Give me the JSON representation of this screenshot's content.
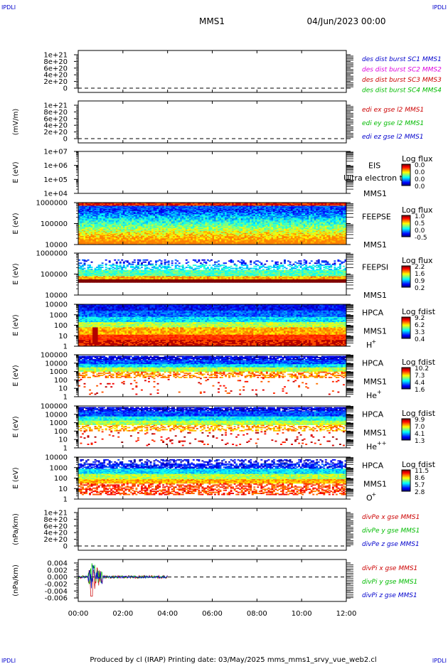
{
  "header": {
    "corner_left": "IPDLI",
    "corner_right": "IPDLI",
    "spacecraft": "MMS1",
    "datetime": "04/Jun/2023 00:00"
  },
  "footer": {
    "text": "Produced by cl (IRAP)   Printing date: 03/May/2025   mms_mms1_srvy_vue_web2.cl",
    "corner_left": "IPDLI",
    "corner_right": "IPDLI"
  },
  "colors": {
    "red": "#cc0000",
    "magenta": "#dd00dd",
    "green": "#00bb00",
    "blue": "#0000cc"
  },
  "chart_data": [
    {
      "id": "p1",
      "type": "line",
      "ylabel": "",
      "yticks": [
        "1e+21",
        "8e+20",
        "6e+20",
        "4e+20",
        "2e+20",
        "0"
      ],
      "channels": [
        {
          "text": "des dist burst SC1 MMS1",
          "color": "blue"
        },
        {
          "text": "des dist burst SC2 MMS2",
          "color": "magenta"
        },
        {
          "text": "des dist burst SC3 MMS3",
          "color": "red"
        },
        {
          "text": "des dist burst SC4 MMS4",
          "color": "green"
        }
      ],
      "zero_line": true
    },
    {
      "id": "p2",
      "type": "line",
      "ylabel": "(mV/m)",
      "yticks": [
        "1e+21",
        "8e+20",
        "6e+20",
        "4e+20",
        "2e+20",
        "0"
      ],
      "channels": [
        {
          "text": "edi ex gse l2 MMS1",
          "color": "red"
        },
        {
          "text": "edi ey gse l2 MMS1",
          "color": "green"
        },
        {
          "text": "edi ez gse l2 MMS1",
          "color": "blue"
        }
      ],
      "zero_line": true
    },
    {
      "id": "p3",
      "type": "heatmap",
      "ylabel": "E (eV)",
      "yticks": [
        "1e+07",
        "1e+06",
        "1e+05",
        "1e+04"
      ],
      "instrument": [
        "EIS",
        "MMS1"
      ],
      "overlay_text": "Ultra electron to",
      "colorbar": {
        "label": "Log flux",
        "ticks": [
          "0.0",
          "0.0",
          "0.0",
          "0.0"
        ]
      },
      "empty": true
    },
    {
      "id": "p4",
      "type": "heatmap",
      "ylabel": "E (eV)",
      "yticks": [
        "1000000",
        "100000",
        "10000"
      ],
      "instrument": [
        "FEEPSE",
        "MMS1"
      ],
      "colorbar": {
        "label": "Log flux",
        "ticks": [
          "1.0",
          "0.5",
          "0.0",
          "-0.5"
        ]
      },
      "style": "feepse"
    },
    {
      "id": "p5",
      "type": "heatmap",
      "ylabel": "E (eV)",
      "yticks": [
        "1000000",
        "100000",
        "10000"
      ],
      "instrument": [
        "FEEPSI",
        "MMS1"
      ],
      "colorbar": {
        "label": "Log flux",
        "ticks": [
          "2.2",
          "1.6",
          "0.9",
          "0.2"
        ]
      },
      "style": "feepsi"
    },
    {
      "id": "p6",
      "type": "heatmap",
      "ylabel": "E (eV)",
      "yticks": [
        "10000",
        "1000",
        "100",
        "10",
        "1"
      ],
      "instrument": [
        "HPCA",
        "MMS1"
      ],
      "species": "H",
      "charge": "+",
      "colorbar": {
        "label": "Log fdist",
        "ticks": [
          "9.2",
          "6.2",
          "3.3",
          "0.4"
        ]
      },
      "style": "hplus"
    },
    {
      "id": "p7",
      "type": "heatmap",
      "ylabel": "E (eV)",
      "yticks": [
        "100000",
        "10000",
        "1000",
        "100",
        "10",
        "1"
      ],
      "instrument": [
        "HPCA",
        "MMS1"
      ],
      "species": "He",
      "charge": "+",
      "colorbar": {
        "label": "Log fdist",
        "ticks": [
          "10.2",
          "7.3",
          "4.4",
          "1.6"
        ]
      },
      "style": "heplus"
    },
    {
      "id": "p8",
      "type": "heatmap",
      "ylabel": "E (eV)",
      "yticks": [
        "100000",
        "10000",
        "1000",
        "100",
        "10",
        "1"
      ],
      "instrument": [
        "HPCA",
        "MMS1"
      ],
      "species": "He",
      "charge": "++",
      "colorbar": {
        "label": "Log fdist",
        "ticks": [
          "9.9",
          "7.0",
          "4.1",
          "1.3"
        ]
      },
      "style": "hepp"
    },
    {
      "id": "p9",
      "type": "heatmap",
      "ylabel": "E (eV)",
      "yticks": [
        "10000",
        "1000",
        "100",
        "10",
        "1"
      ],
      "instrument": [
        "HPCA",
        "MMS1"
      ],
      "species": "O",
      "charge": "+",
      "colorbar": {
        "label": "Log fdist",
        "ticks": [
          "11.5",
          "8.6",
          "5.7",
          "2.8"
        ]
      },
      "style": "oplus"
    },
    {
      "id": "p10",
      "type": "line",
      "ylabel": "(nPa/km)",
      "yticks": [
        "1e+21",
        "8e+20",
        "6e+20",
        "4e+20",
        "2e+20",
        "0"
      ],
      "channels": [
        {
          "text": "divPe x gse MMS1",
          "color": "red"
        },
        {
          "text": "divPe y gse MMS1",
          "color": "green"
        },
        {
          "text": "divPe z gse MMS1",
          "color": "blue"
        }
      ],
      "zero_line": true
    },
    {
      "id": "p11",
      "type": "line",
      "ylabel": "(nPa/km)",
      "yticks": [
        "0.004",
        "0.002",
        "0.000",
        "-0.002",
        "-0.004",
        "-0.006"
      ],
      "ylim": [
        -0.007,
        0.005
      ],
      "channels": [
        {
          "text": "divPi x gse MMS1",
          "color": "red"
        },
        {
          "text": "divPi y gse MMS1",
          "color": "green"
        },
        {
          "text": "divPi z gse MMS1",
          "color": "blue"
        }
      ],
      "zero_line": true,
      "data_end_hour": 4.0
    }
  ],
  "xaxis": {
    "ticks": [
      "00:00",
      "02:00",
      "04:00",
      "06:00",
      "08:00",
      "10:00",
      "12:00"
    ],
    "hours": [
      0,
      2,
      4,
      6,
      8,
      10,
      12
    ],
    "range_hours": [
      0,
      12
    ]
  }
}
